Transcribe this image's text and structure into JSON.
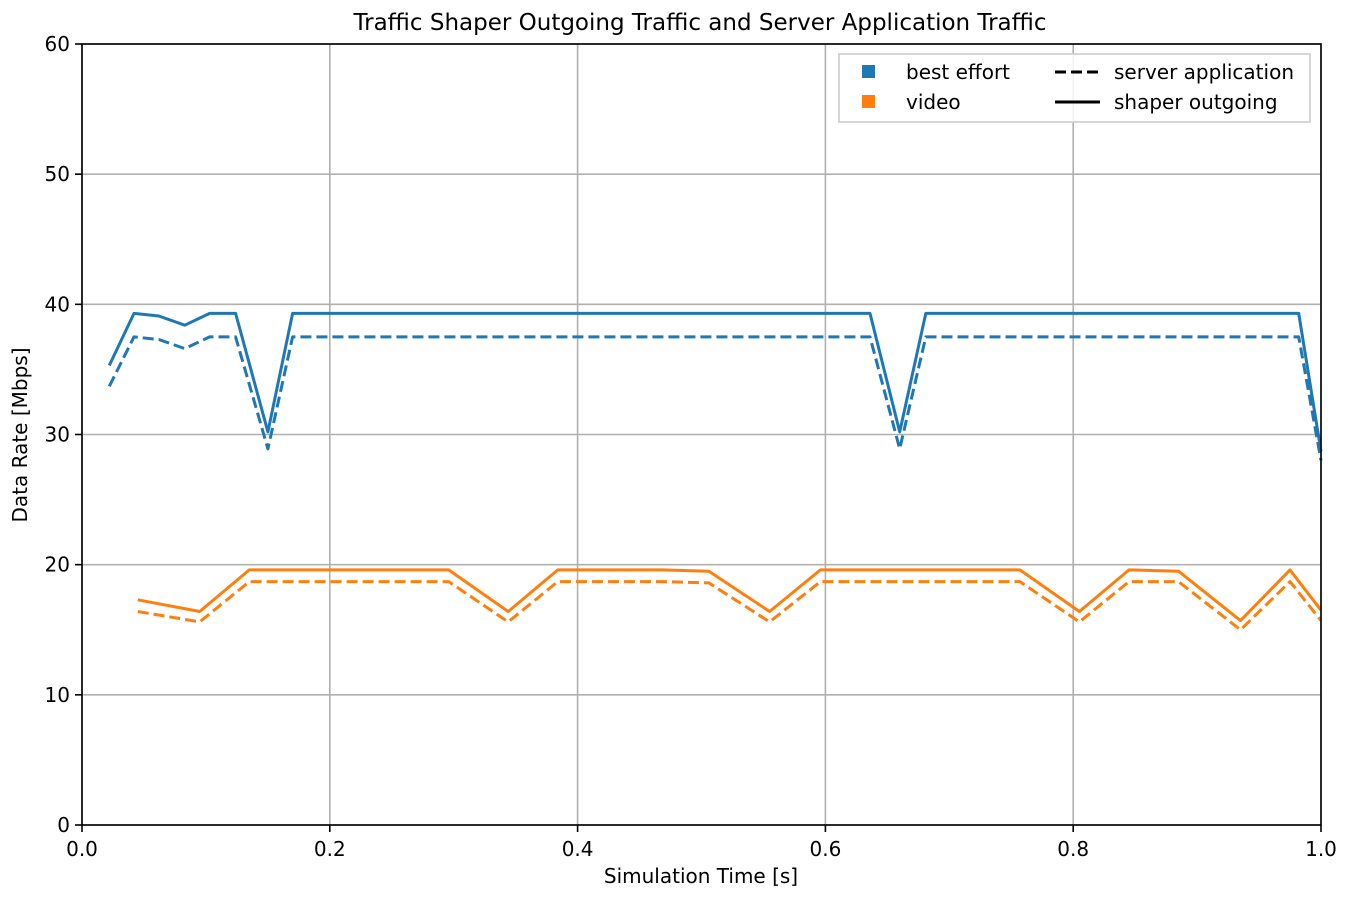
{
  "chart_data": {
    "type": "line",
    "title": "Traffic Shaper Outgoing Traffic and Server Application Traffic",
    "xlabel": "Simulation Time [s]",
    "ylabel": "Data Rate [Mbps]",
    "xlim": [
      0,
      1.0
    ],
    "ylim": [
      0,
      60
    ],
    "xticks": [
      0.0,
      0.2,
      0.4,
      0.6,
      0.8,
      1.0
    ],
    "xtick_labels": [
      "0.0",
      "0.2",
      "0.4",
      "0.6",
      "0.8",
      "1.0"
    ],
    "yticks": [
      0,
      10,
      20,
      30,
      40,
      50,
      60
    ],
    "ytick_labels": [
      "0",
      "10",
      "20",
      "30",
      "40",
      "50",
      "60"
    ],
    "grid": true,
    "legend": {
      "placement": "top-right",
      "color_entries": [
        {
          "label": "best effort",
          "color": "#1f77b4"
        },
        {
          "label": "video",
          "color": "#ff7f0e"
        }
      ],
      "style_entries": [
        {
          "label": "server application",
          "dash": "dashed"
        },
        {
          "label": "shaper outgoing",
          "dash": "solid"
        }
      ]
    },
    "series": [
      {
        "name": "best effort shaper outgoing",
        "color": "#1f77b4",
        "dash": "solid",
        "points": [
          [
            0.022,
            35.3
          ],
          [
            0.042,
            39.3
          ],
          [
            0.062,
            39.1
          ],
          [
            0.083,
            38.4
          ],
          [
            0.103,
            39.3
          ],
          [
            0.124,
            39.3
          ],
          [
            0.15,
            30.2
          ],
          [
            0.17,
            39.3
          ],
          [
            0.636,
            39.3
          ],
          [
            0.66,
            30.2
          ],
          [
            0.681,
            39.3
          ],
          [
            0.982,
            39.3
          ],
          [
            1.0,
            28.7
          ]
        ]
      },
      {
        "name": "best effort server application",
        "color": "#1f77b4",
        "dash": "dashed",
        "points": [
          [
            0.022,
            33.7
          ],
          [
            0.042,
            37.5
          ],
          [
            0.062,
            37.3
          ],
          [
            0.083,
            36.6
          ],
          [
            0.103,
            37.5
          ],
          [
            0.124,
            37.5
          ],
          [
            0.15,
            28.9
          ],
          [
            0.17,
            37.5
          ],
          [
            0.636,
            37.5
          ],
          [
            0.66,
            28.9
          ],
          [
            0.681,
            37.5
          ],
          [
            0.982,
            37.5
          ],
          [
            1.0,
            28.0
          ]
        ]
      },
      {
        "name": "video shaper outgoing",
        "color": "#ff7f0e",
        "dash": "solid",
        "points": [
          [
            0.045,
            17.3
          ],
          [
            0.095,
            16.4
          ],
          [
            0.135,
            19.6
          ],
          [
            0.296,
            19.6
          ],
          [
            0.344,
            16.4
          ],
          [
            0.384,
            19.6
          ],
          [
            0.468,
            19.6
          ],
          [
            0.506,
            19.5
          ],
          [
            0.555,
            16.4
          ],
          [
            0.596,
            19.6
          ],
          [
            0.757,
            19.6
          ],
          [
            0.805,
            16.4
          ],
          [
            0.845,
            19.6
          ],
          [
            0.885,
            19.5
          ],
          [
            0.935,
            15.7
          ],
          [
            0.975,
            19.6
          ],
          [
            1.0,
            16.5
          ]
        ]
      },
      {
        "name": "video server application",
        "color": "#ff7f0e",
        "dash": "dashed",
        "points": [
          [
            0.045,
            16.4
          ],
          [
            0.095,
            15.6
          ],
          [
            0.135,
            18.7
          ],
          [
            0.296,
            18.7
          ],
          [
            0.344,
            15.6
          ],
          [
            0.384,
            18.7
          ],
          [
            0.468,
            18.7
          ],
          [
            0.506,
            18.6
          ],
          [
            0.555,
            15.6
          ],
          [
            0.596,
            18.7
          ],
          [
            0.757,
            18.7
          ],
          [
            0.805,
            15.6
          ],
          [
            0.845,
            18.7
          ],
          [
            0.885,
            18.7
          ],
          [
            0.935,
            15.0
          ],
          [
            0.975,
            18.7
          ],
          [
            1.0,
            15.7
          ]
        ]
      }
    ]
  }
}
